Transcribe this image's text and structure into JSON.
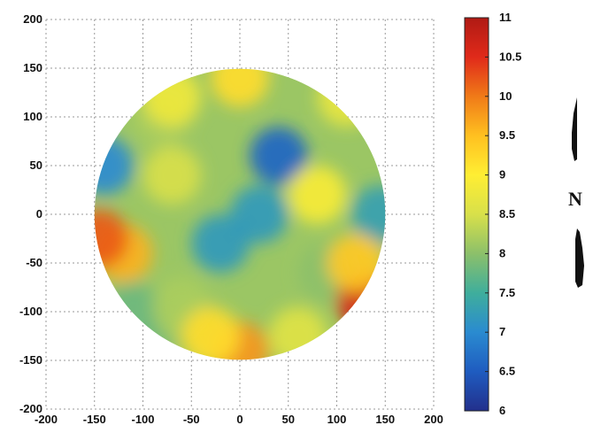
{
  "chart_data": {
    "type": "heatmap",
    "title": "",
    "xlabel": "",
    "ylabel": "",
    "xlim": [
      -200,
      200
    ],
    "ylim": [
      -200,
      200
    ],
    "x_ticks": [
      -200,
      -150,
      -100,
      -50,
      0,
      50,
      100,
      150,
      200
    ],
    "y_ticks": [
      200,
      150,
      100,
      50,
      0,
      -50,
      -100,
      -150,
      -200
    ],
    "grid": true,
    "domain_shape": "circle",
    "domain_radius": 150,
    "colorbar": {
      "min": 6,
      "max": 11,
      "ticks": [
        "11",
        "10.5",
        "10",
        "9.5",
        "9",
        "8.5",
        "8",
        "7.5",
        "7",
        "6.5",
        "6"
      ],
      "colormap": "jet",
      "colors": [
        "#22308c",
        "#1f5cc0",
        "#2a8bd0",
        "#3fae9c",
        "#8cc06a",
        "#d8e04a",
        "#ffee33",
        "#ffc020",
        "#f07a18",
        "#e02a1a",
        "#b01a14"
      ]
    },
    "field_features": [
      {
        "x": 40,
        "y": 60,
        "value": 6.6
      },
      {
        "x": -140,
        "y": 50,
        "value": 7.0
      },
      {
        "x": -20,
        "y": -30,
        "value": 7.2
      },
      {
        "x": -70,
        "y": 40,
        "value": 8.5
      },
      {
        "x": 20,
        "y": 0,
        "value": 7.2
      },
      {
        "x": -80,
        "y": 100,
        "value": 8.2
      },
      {
        "x": 0,
        "y": 140,
        "value": 9.2
      },
      {
        "x": -70,
        "y": 120,
        "value": 8.8
      },
      {
        "x": 110,
        "y": 120,
        "value": 8.7
      },
      {
        "x": 80,
        "y": 20,
        "value": 8.9
      },
      {
        "x": 90,
        "y": -60,
        "value": 8.0
      },
      {
        "x": 145,
        "y": 0,
        "value": 7.3
      },
      {
        "x": -120,
        "y": -40,
        "value": 9.6
      },
      {
        "x": -145,
        "y": -25,
        "value": 10.2
      },
      {
        "x": -110,
        "y": -100,
        "value": 7.8
      },
      {
        "x": -60,
        "y": -95,
        "value": 8.2
      },
      {
        "x": 130,
        "y": -90,
        "value": 10.6
      },
      {
        "x": 120,
        "y": -50,
        "value": 9.4
      },
      {
        "x": 0,
        "y": -140,
        "value": 9.8
      },
      {
        "x": -30,
        "y": -125,
        "value": 9.2
      },
      {
        "x": 60,
        "y": -125,
        "value": 8.6
      },
      {
        "x": -100,
        "y": -145,
        "value": 7.8
      }
    ]
  },
  "north_arrow": {
    "label": "N",
    "icon": "north-arrow-icon"
  }
}
